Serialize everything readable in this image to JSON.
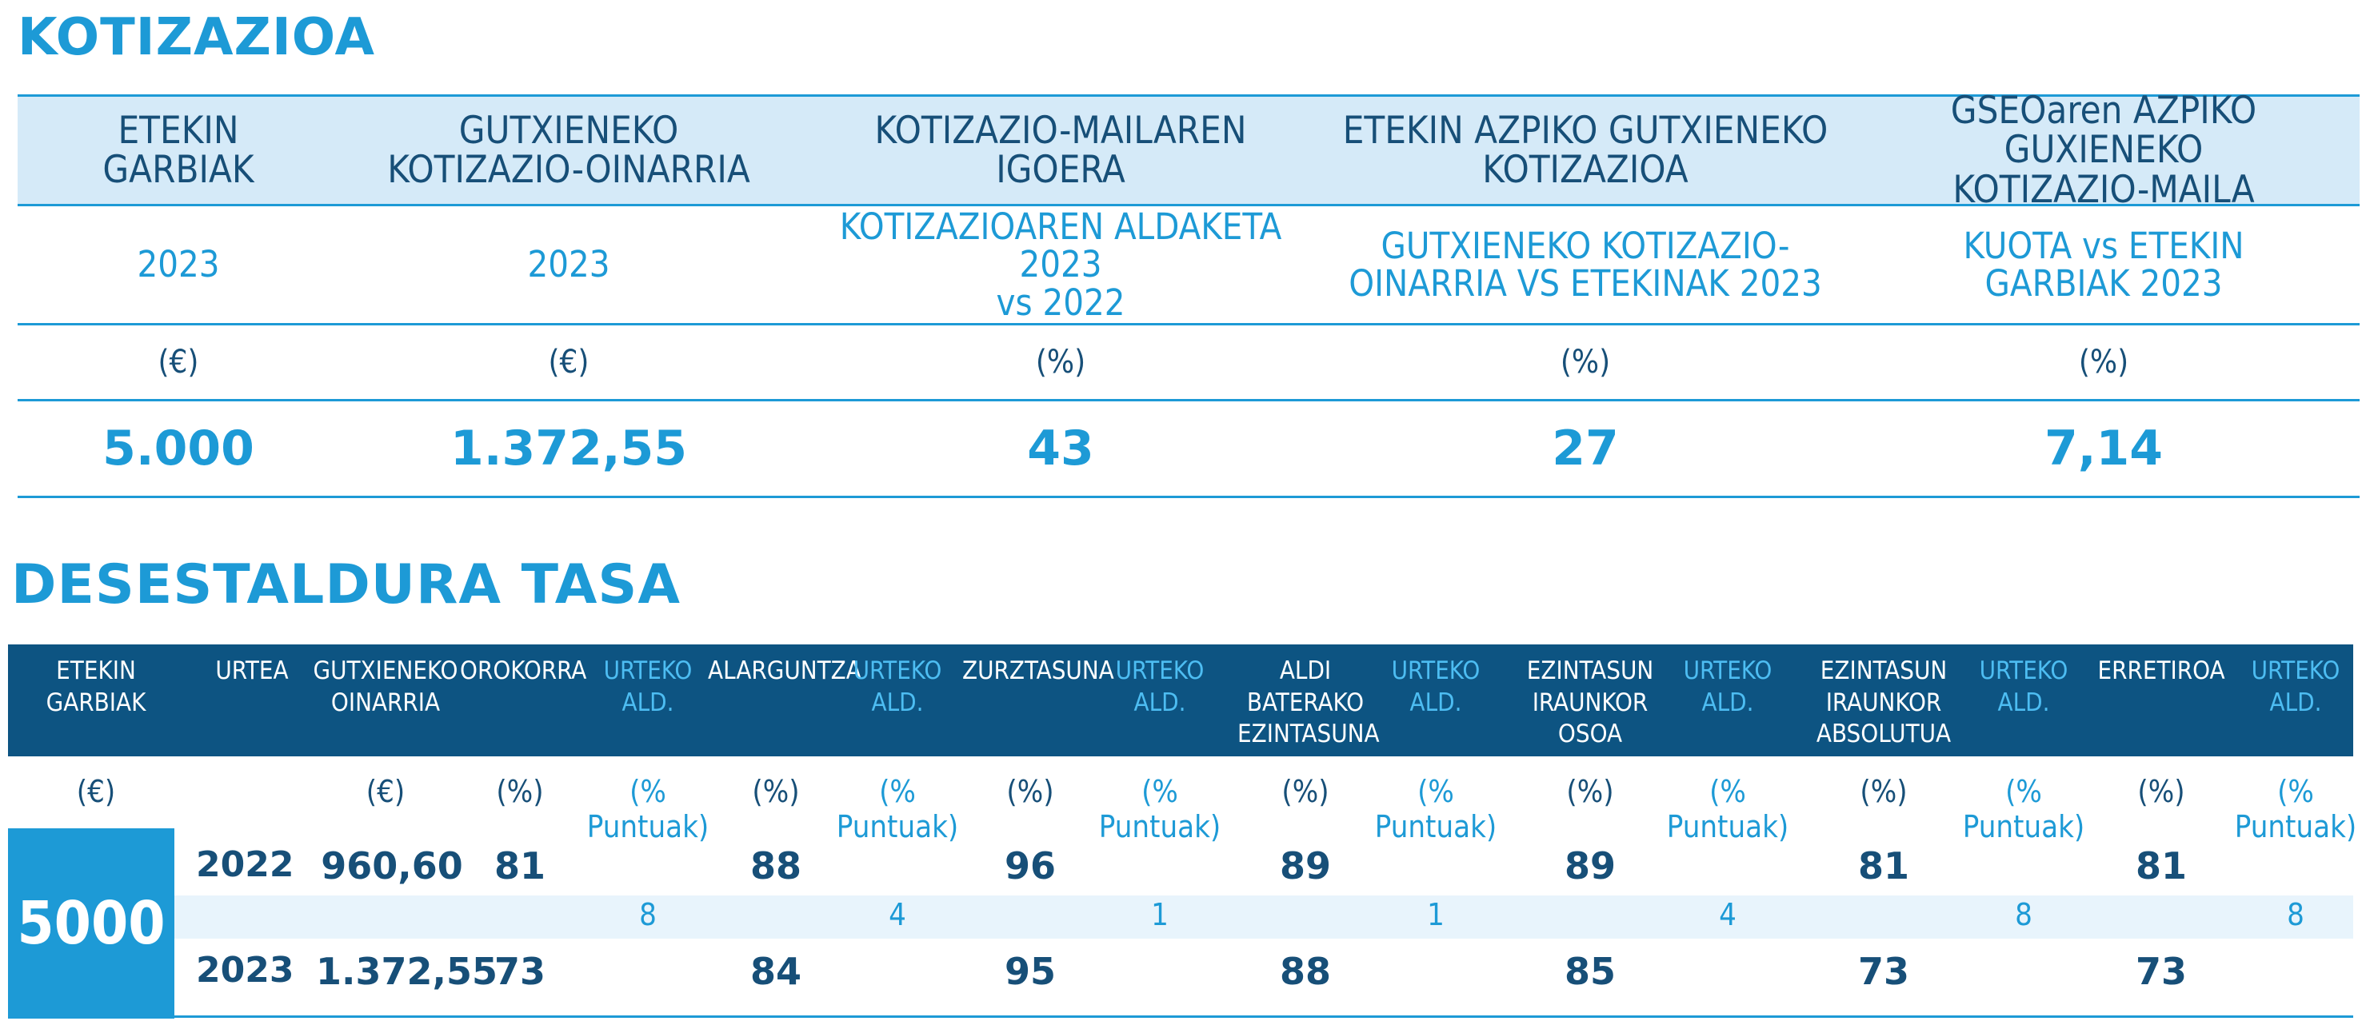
{
  "kotizazioa": {
    "title": "KOTIZAZIOA",
    "headers": [
      "ETEKIN\nGARBIAK",
      "GUTXIENEKO\nKOTIZAZIO-OINARRIA",
      "KOTIZAZIO-MAILAREN\nIGOERA",
      "ETEKIN AZPIKO GUTXIENEKO\nKOTIZAZIOA",
      "GSEOaren AZPIKO GUXIENEKO\nKOTIZAZIO-MAILA"
    ],
    "subheaders": [
      "2023",
      "2023",
      "KOTIZAZIOAREN ALDAKETA 2023\nvs 2022",
      "GUTXIENEKO KOTIZAZIO-\nOINARRIA VS ETEKINAK 2023",
      "KUOTA vs ETEKIN\nGARBIAK 2023"
    ],
    "units": [
      "(€)",
      "(€)",
      "(%)",
      "(%)",
      "(%)"
    ],
    "values": [
      "5.000",
      "1.372,55",
      "43",
      "27",
      "7,14"
    ]
  },
  "desestaldura": {
    "title": "DESESTALDURA TASA",
    "headers": [
      "ETEKIN\nGARBIAK",
      "URTEA",
      "GUTXIENEKO\nOINARRIA",
      "OROKORRA",
      "URTEKO\nALD.",
      "ALARGUNTZA",
      "URTEKO\nALD.",
      "ZURZTASUNA",
      "URTEKO\nALD.",
      "ALDI\nBATERAKO\nEZINTASUNA",
      "URTEKO\nALD.",
      "EZINTASUN\nIRAUNKOR\nOSOA",
      "URTEKO\nALD.",
      "EZINTASUN\nIRAUNKOR\nABSOLUTUA",
      "URTEKO\nALD.",
      "ERRETIROA",
      "URTEKO\nALD."
    ],
    "units": [
      "(€)",
      "",
      "(€)",
      "(%)",
      "(% Puntuak)",
      "(%)",
      "(% Puntuak)",
      "(%)",
      "(% Puntuak)",
      "(%)",
      "(% Puntuak)",
      "(%)",
      "(% Puntuak)",
      "(%)",
      "(% Puntuak)",
      "(%)",
      "(% Puntuak)"
    ],
    "net_income": "5000",
    "row_2022": {
      "year": "2022",
      "base": "960,60",
      "values": [
        "81",
        "88",
        "96",
        "89",
        "89",
        "81",
        "81"
      ]
    },
    "annual_changes": [
      "8",
      "4",
      "1",
      "1",
      "4",
      "8",
      "8"
    ],
    "row_2023": {
      "year": "2023",
      "base": "1.372,55",
      "values": [
        "73",
        "84",
        "95",
        "88",
        "85",
        "73",
        "73"
      ]
    }
  }
}
